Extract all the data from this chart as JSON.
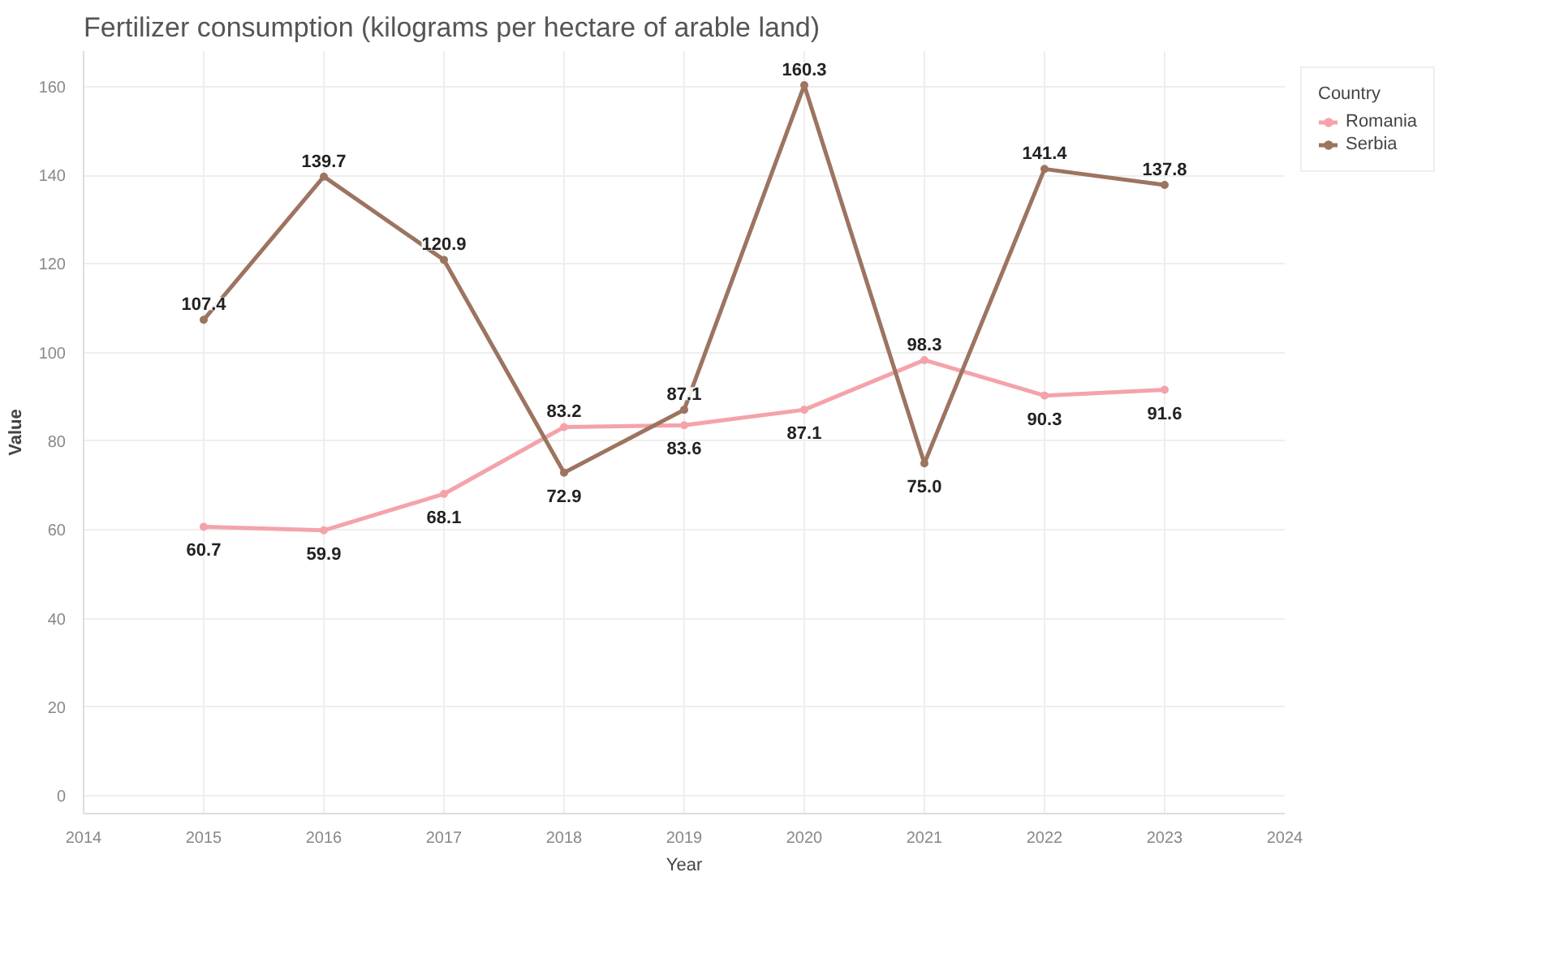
{
  "chart_data": {
    "type": "line",
    "title": "Fertilizer consumption (kilograms per hectare of arable land)",
    "xlabel": "Year",
    "ylabel": "Value",
    "legend_title": "Country",
    "x": [
      2015,
      2016,
      2017,
      2018,
      2019,
      2020,
      2021,
      2022,
      2023
    ],
    "series": [
      {
        "name": "Romania",
        "color": "#f4a3ab",
        "values": [
          60.7,
          59.9,
          68.1,
          83.2,
          83.6,
          87.1,
          98.3,
          90.3,
          91.6
        ],
        "value_labels": [
          "60.7",
          "59.9",
          "68.1",
          "83.2",
          "83.6",
          "87.1",
          "98.3",
          "90.3",
          "91.6"
        ]
      },
      {
        "name": "Serbia",
        "color": "#9c7460",
        "values": [
          107.4,
          139.7,
          120.9,
          72.9,
          87.1,
          160.3,
          75.0,
          141.4,
          137.8
        ],
        "value_labels": [
          "107.4",
          "139.7",
          "120.9",
          "72.9",
          "87.1",
          "160.3",
          "75.0",
          "141.4",
          "137.8"
        ]
      }
    ],
    "xlim": [
      2014,
      2024
    ],
    "xticks": [
      2014,
      2015,
      2016,
      2017,
      2018,
      2019,
      2020,
      2021,
      2022,
      2023,
      2024
    ],
    "ylim": [
      -4,
      168
    ],
    "yticks": [
      0,
      20,
      40,
      60,
      80,
      100,
      120,
      140,
      160
    ],
    "grid": true,
    "legend": "top right",
    "marker": "circle",
    "line_style": "solid"
  }
}
